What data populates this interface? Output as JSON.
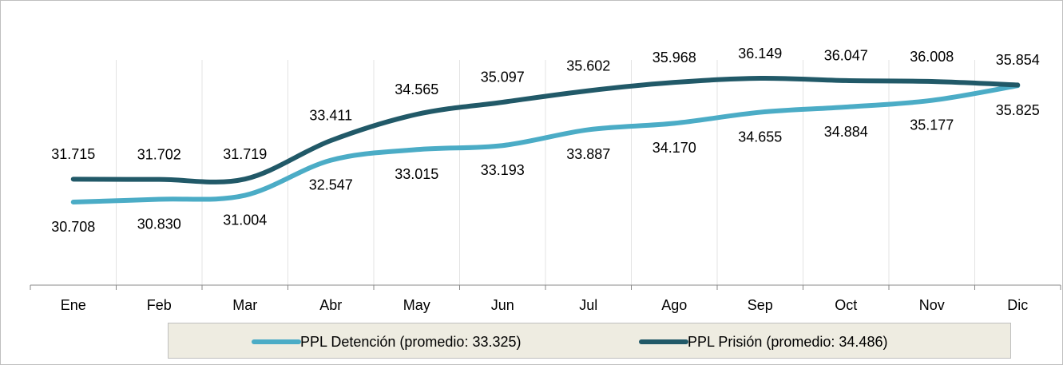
{
  "chart_data": {
    "type": "line",
    "categories": [
      "Ene",
      "Feb",
      "Mar",
      "Abr",
      "May",
      "Jun",
      "Jul",
      "Ago",
      "Sep",
      "Oct",
      "Nov",
      "Dic"
    ],
    "series": [
      {
        "name": "PPL Detención (promedio: 33.325)",
        "color": "#4bacc6",
        "values": [
          30708,
          30830,
          31004,
          32547,
          33015,
          33193,
          33887,
          34170,
          34655,
          34884,
          35177,
          35825
        ],
        "value_labels": [
          "30.708",
          "30.830",
          "31.004",
          "32.547",
          "33.015",
          "33.193",
          "33.887",
          "34.170",
          "34.655",
          "34.884",
          "35.177",
          "35.825"
        ]
      },
      {
        "name": "PPL Prisión (promedio: 34.486)",
        "color": "#215968",
        "values": [
          31715,
          31702,
          31719,
          33411,
          34565,
          35097,
          35602,
          35968,
          36149,
          36047,
          36008,
          35854
        ],
        "value_labels": [
          "31.715",
          "31.702",
          "31.719",
          "33.411",
          "34.565",
          "35.097",
          "35.602",
          "35.968",
          "36.149",
          "36.047",
          "36.008",
          "35.854"
        ]
      }
    ],
    "grid": true,
    "legend": "bottom"
  }
}
